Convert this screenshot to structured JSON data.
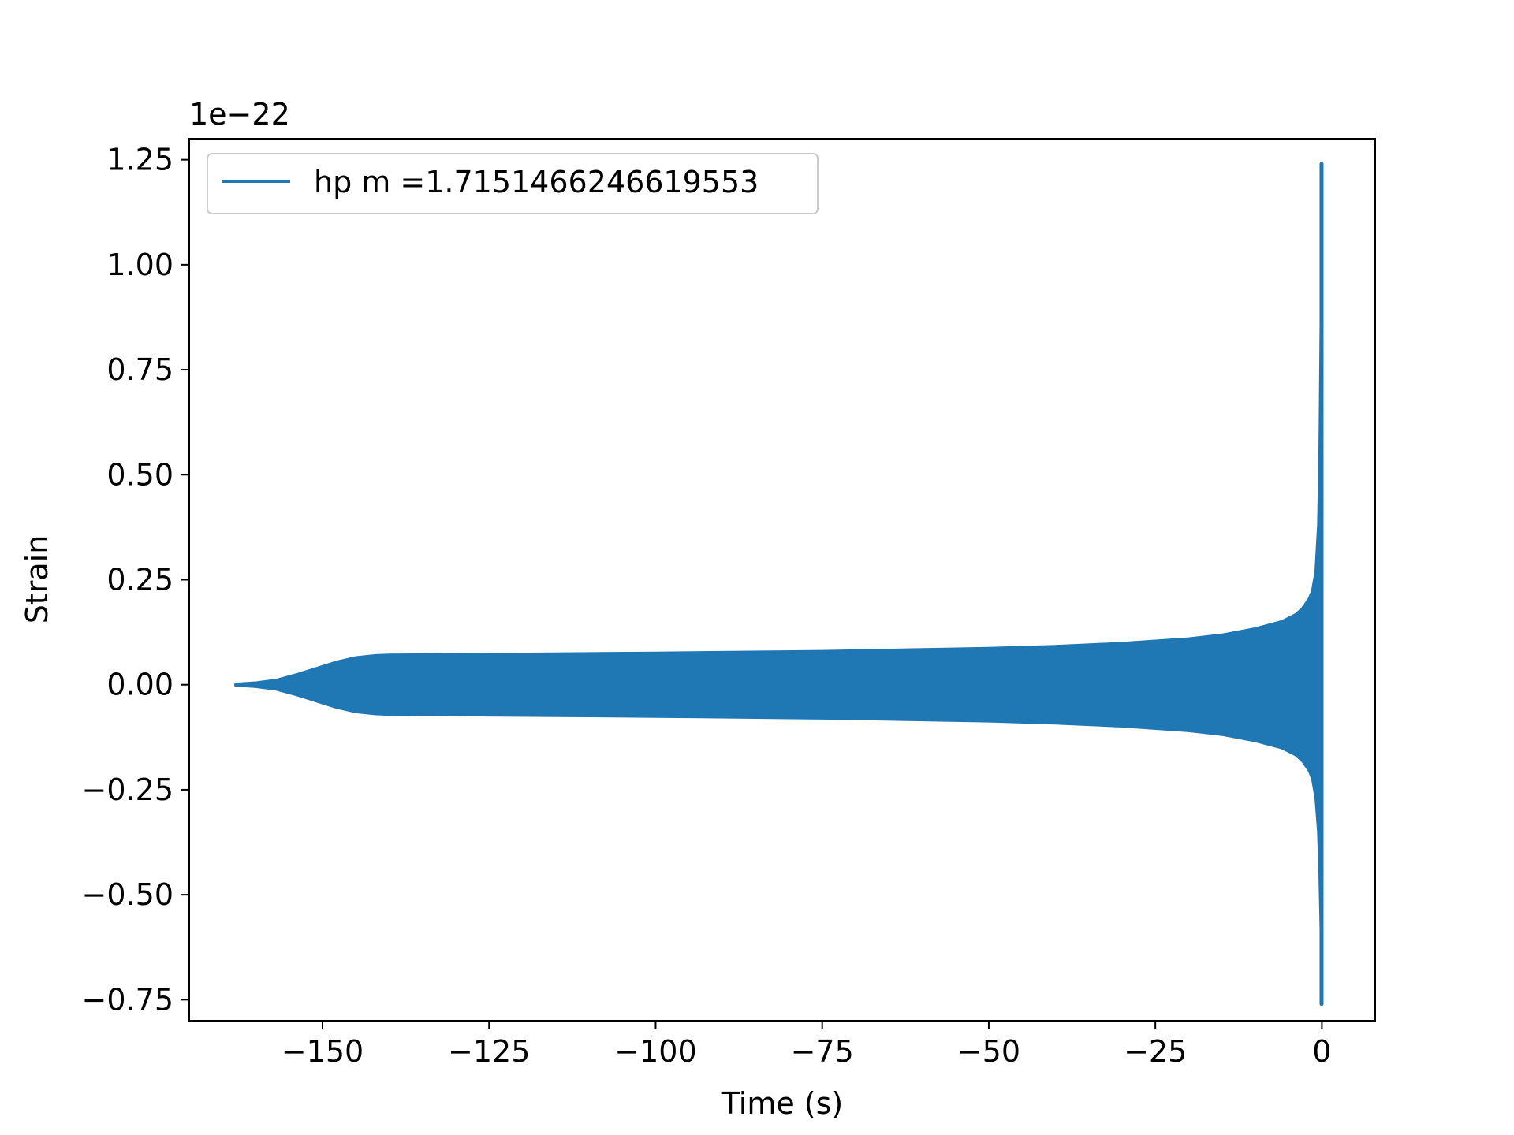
{
  "colors": {
    "series": "#1f77b4",
    "axes": "#000000",
    "background": "#ffffff",
    "legend_border": "#cccccc"
  },
  "chart_data": {
    "type": "line",
    "title": "",
    "xlabel": "Time (s)",
    "ylabel": "Strain",
    "y_offset_label": "1e−22",
    "y_scale_factor": 1e-22,
    "xlim": [
      -170,
      8
    ],
    "ylim": [
      -0.8,
      1.3
    ],
    "x_ticks": [
      -150,
      -125,
      -100,
      -75,
      -50,
      -25,
      0
    ],
    "x_tick_labels": [
      "−150",
      "−125",
      "−100",
      "−75",
      "−50",
      "−25",
      "0"
    ],
    "y_ticks": [
      -0.75,
      -0.5,
      -0.25,
      0.0,
      0.25,
      0.5,
      0.75,
      1.0,
      1.25
    ],
    "y_tick_labels": [
      "−0.75",
      "−0.50",
      "−0.25",
      "0.00",
      "0.25",
      "0.50",
      "0.75",
      "1.00",
      "1.25"
    ],
    "grid": false,
    "legend_position": "upper-left",
    "series": [
      {
        "name": "hp m =1.7151466246619553",
        "color": "#1f77b4",
        "render": "dense-oscillation-band",
        "t_start": -163,
        "t_end": 0,
        "upper_envelope": [
          [
            -163,
            0.003
          ],
          [
            -160,
            0.006
          ],
          [
            -157,
            0.012
          ],
          [
            -154,
            0.025
          ],
          [
            -151,
            0.04
          ],
          [
            -148,
            0.055
          ],
          [
            -145,
            0.066
          ],
          [
            -142,
            0.071
          ],
          [
            -140,
            0.072
          ],
          [
            -125,
            0.074
          ],
          [
            -100,
            0.077
          ],
          [
            -75,
            0.081
          ],
          [
            -50,
            0.088
          ],
          [
            -40,
            0.093
          ],
          [
            -30,
            0.1
          ],
          [
            -20,
            0.111
          ],
          [
            -15,
            0.12
          ],
          [
            -10,
            0.135
          ],
          [
            -6,
            0.152
          ],
          [
            -4,
            0.168
          ],
          [
            -3,
            0.182
          ],
          [
            -2,
            0.205
          ],
          [
            -1.5,
            0.224
          ],
          [
            -1,
            0.27
          ],
          [
            -0.6,
            0.38
          ],
          [
            -0.4,
            0.55
          ],
          [
            -0.2,
            0.9
          ],
          [
            -0.05,
            1.24
          ]
        ],
        "lower_envelope": [
          [
            -163,
            -0.003
          ],
          [
            -160,
            -0.006
          ],
          [
            -157,
            -0.012
          ],
          [
            -154,
            -0.025
          ],
          [
            -151,
            -0.04
          ],
          [
            -148,
            -0.055
          ],
          [
            -145,
            -0.066
          ],
          [
            -142,
            -0.071
          ],
          [
            -140,
            -0.072
          ],
          [
            -125,
            -0.074
          ],
          [
            -100,
            -0.077
          ],
          [
            -75,
            -0.081
          ],
          [
            -50,
            -0.088
          ],
          [
            -40,
            -0.093
          ],
          [
            -30,
            -0.1
          ],
          [
            -20,
            -0.111
          ],
          [
            -15,
            -0.12
          ],
          [
            -10,
            -0.135
          ],
          [
            -6,
            -0.152
          ],
          [
            -4,
            -0.168
          ],
          [
            -3,
            -0.182
          ],
          [
            -2,
            -0.205
          ],
          [
            -1.5,
            -0.224
          ],
          [
            -1,
            -0.27
          ],
          [
            -0.6,
            -0.35
          ],
          [
            -0.4,
            -0.45
          ],
          [
            -0.2,
            -0.6
          ],
          [
            -0.05,
            -0.76
          ]
        ]
      }
    ]
  }
}
